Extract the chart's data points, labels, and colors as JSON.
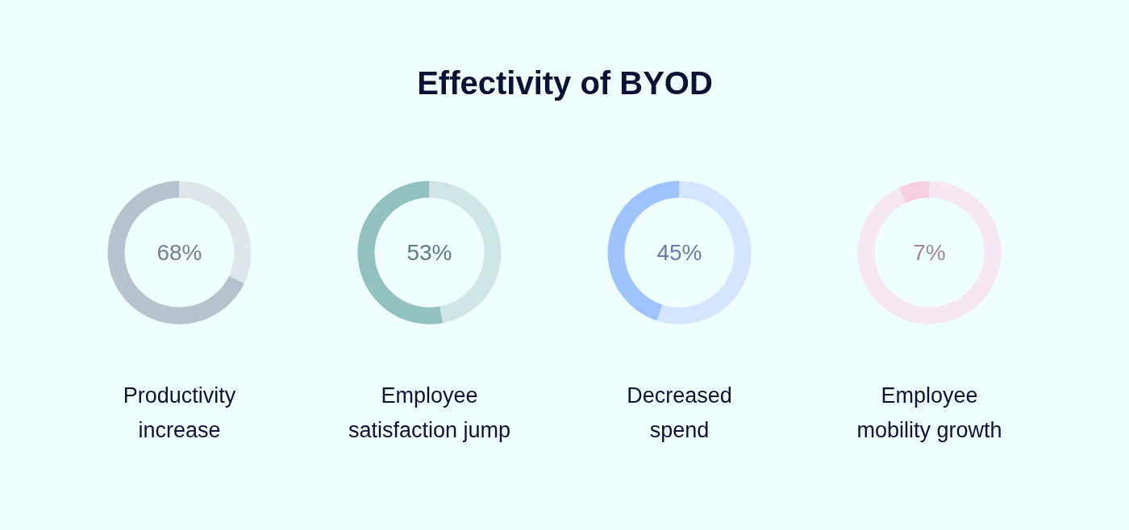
{
  "chart_data": [
    {
      "type": "other",
      "title": "Effectivity of BYOD"
    },
    {
      "type": "donut",
      "title": "Productivity increase",
      "categories": [
        null,
        null
      ],
      "values": [
        68,
        32
      ],
      "colors": [
        "#b8c2cc",
        "#dfe6ea"
      ],
      "annotations": [
        "68%"
      ]
    },
    {
      "type": "donut",
      "title": "Employee satisfaction jump",
      "categories": [
        null,
        null
      ],
      "values": [
        53,
        47
      ],
      "colors": [
        "#93c1bd",
        "#cfe7e4"
      ],
      "annotations": [
        "53%"
      ]
    },
    {
      "type": "donut",
      "title": "Decreased spend",
      "categories": [
        null,
        null
      ],
      "values": [
        45,
        55
      ],
      "colors": [
        "#9fc3ff",
        "#d3e5ff"
      ],
      "annotations": [
        "45%"
      ]
    },
    {
      "type": "donut",
      "title": "Employee mobility growth",
      "categories": [
        null,
        null
      ],
      "values": [
        7,
        93
      ],
      "colors": [
        "#f7cfe0",
        "#f5e8f0"
      ],
      "annotations": [
        "7%"
      ]
    }
  ]
}
